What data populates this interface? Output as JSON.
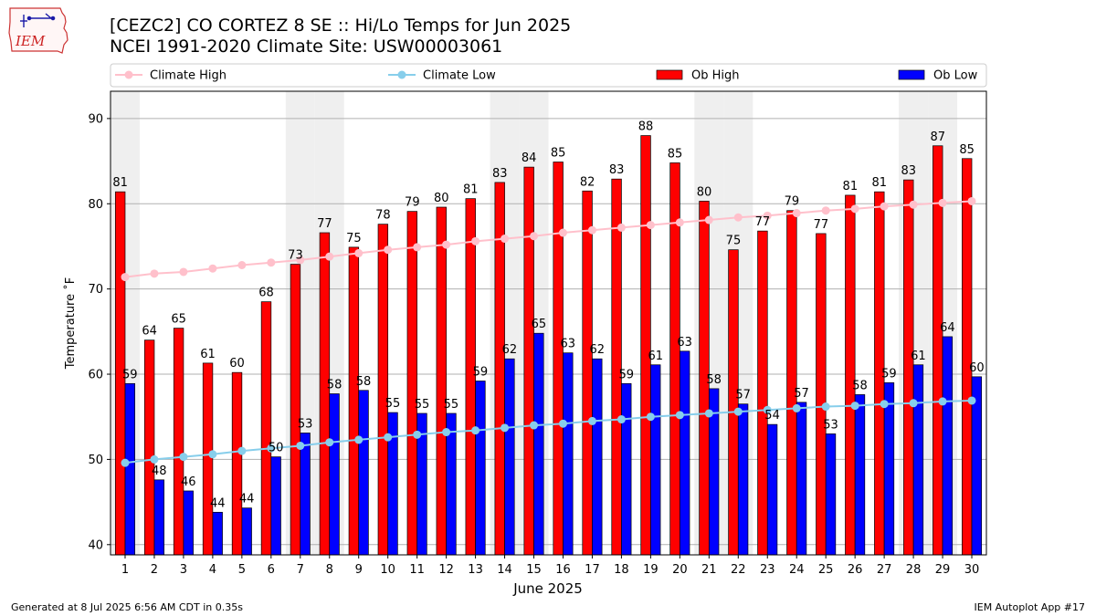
{
  "header": {
    "title": "[CEZC2] CO CORTEZ 8 SE :: Hi/Lo Temps for Jun 2025",
    "subtitle": "NCEI 1991-2020 Climate Site: USW00003061"
  },
  "logo": {
    "text": "IEM",
    "icon": "iem-iowa-logo"
  },
  "footer": {
    "generated": "Generated at 8 Jul 2025 6:56 AM CDT in 0.35s",
    "app": "IEM Autoplot App #17"
  },
  "chart_data": {
    "type": "bar",
    "xlabel": "June 2025",
    "ylabel": "Temperature ˚F",
    "ylim": [
      38.8,
      93.2
    ],
    "y_ticks": [
      40,
      50,
      60,
      70,
      80,
      90
    ],
    "categories": [
      "1",
      "2",
      "3",
      "4",
      "5",
      "6",
      "7",
      "8",
      "9",
      "10",
      "11",
      "12",
      "13",
      "14",
      "15",
      "16",
      "17",
      "18",
      "19",
      "20",
      "21",
      "22",
      "23",
      "24",
      "25",
      "26",
      "27",
      "28",
      "29",
      "30"
    ],
    "weekend_days": [
      1,
      7,
      8,
      14,
      15,
      21,
      22,
      28,
      29
    ],
    "grid": "horizontal",
    "legend_placement": "top",
    "series": [
      {
        "name": "Ob High",
        "kind": "bar",
        "color": "#ff0000",
        "values": [
          81.4,
          64.0,
          65.4,
          61.3,
          60.2,
          68.5,
          72.9,
          76.6,
          74.9,
          77.6,
          79.1,
          79.6,
          80.6,
          82.5,
          84.3,
          84.9,
          81.5,
          82.9,
          88.0,
          84.8,
          80.3,
          74.6,
          76.8,
          79.2,
          76.5,
          81.0,
          81.4,
          82.8,
          86.8,
          85.3
        ],
        "labels": [
          "81",
          "64",
          "65",
          "61",
          "60",
          "68",
          "73",
          "77",
          "75",
          "78",
          "79",
          "80",
          "81",
          "83",
          "84",
          "85",
          "82",
          "83",
          "88",
          "85",
          "80",
          "75",
          "77",
          "79",
          "77",
          "81",
          "81",
          "83",
          "87",
          "85"
        ]
      },
      {
        "name": "Ob Low",
        "kind": "bar",
        "color": "#0000ff",
        "values": [
          58.9,
          47.6,
          46.3,
          43.8,
          44.3,
          50.3,
          53.1,
          57.7,
          58.1,
          55.5,
          55.4,
          55.4,
          59.2,
          61.8,
          64.8,
          62.5,
          61.8,
          58.9,
          61.1,
          62.7,
          58.3,
          56.5,
          54.1,
          56.7,
          53.0,
          57.6,
          59.0,
          61.1,
          64.4,
          59.7
        ],
        "labels": [
          "59",
          "48",
          "46",
          "44",
          "44",
          "50",
          "53",
          "58",
          "58",
          "55",
          "55",
          "55",
          "59",
          "62",
          "65",
          "63",
          "62",
          "59",
          "61",
          "63",
          "58",
          "57",
          "54",
          "57",
          "53",
          "58",
          "59",
          "61",
          "64",
          "60"
        ]
      },
      {
        "name": "Climate High",
        "kind": "line",
        "color": "#ffc0cb",
        "values": [
          71.4,
          71.8,
          72.0,
          72.4,
          72.8,
          73.1,
          73.4,
          73.8,
          74.2,
          74.6,
          74.9,
          75.2,
          75.6,
          75.9,
          76.2,
          76.6,
          76.9,
          77.2,
          77.5,
          77.8,
          78.1,
          78.4,
          78.6,
          78.9,
          79.2,
          79.4,
          79.7,
          79.9,
          80.1,
          80.3
        ]
      },
      {
        "name": "Climate Low",
        "kind": "line",
        "color": "#87ceeb",
        "values": [
          49.6,
          50.0,
          50.3,
          50.6,
          51.0,
          51.3,
          51.6,
          52.0,
          52.3,
          52.6,
          52.9,
          53.2,
          53.4,
          53.7,
          54.0,
          54.2,
          54.5,
          54.7,
          55.0,
          55.2,
          55.4,
          55.6,
          55.8,
          56.0,
          56.2,
          56.3,
          56.5,
          56.6,
          56.8,
          56.9
        ]
      }
    ]
  }
}
